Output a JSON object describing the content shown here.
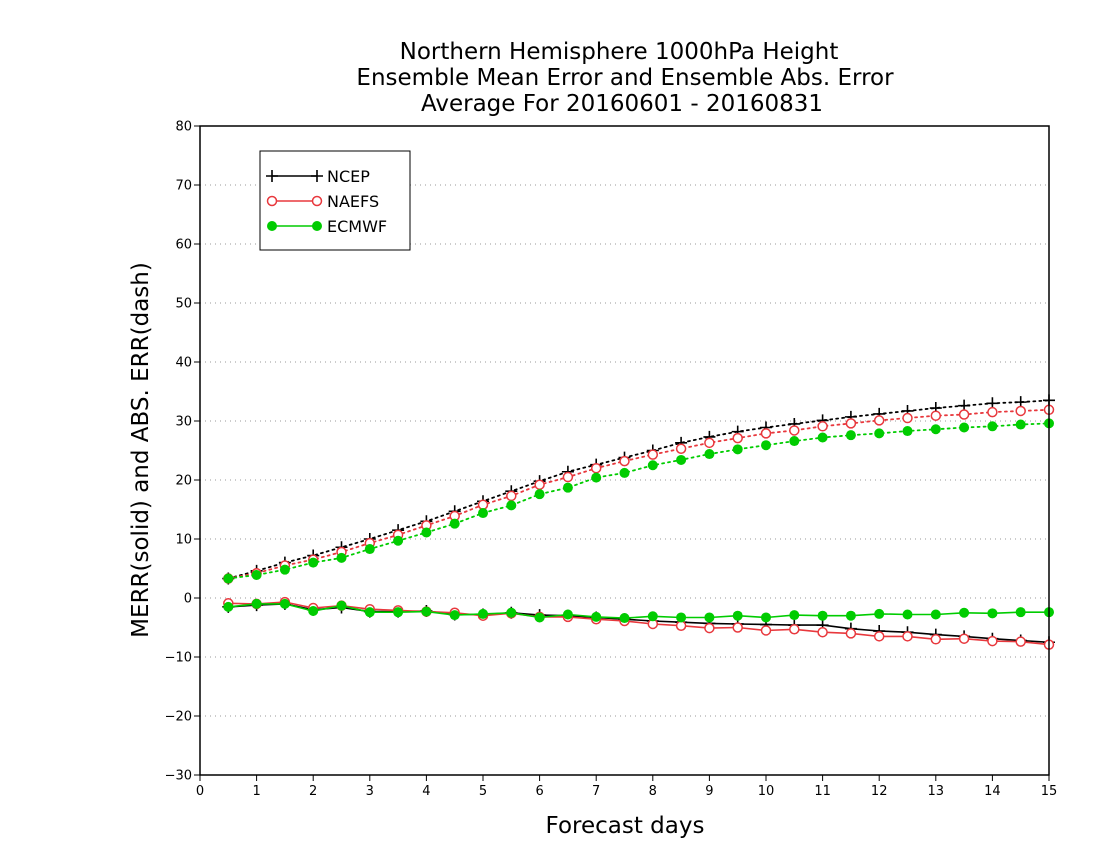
{
  "chart_data": {
    "type": "line",
    "title": [
      "Northern Hemisphere 1000hPa Height",
      "Ensemble Mean Error and Ensemble Abs. Error",
      "Average For 20160601 - 20160831"
    ],
    "xlabel": "Forecast days",
    "ylabel": "MERR(solid) and ABS. ERR(dash)",
    "xlim": [
      0,
      15
    ],
    "ylim": [
      -30,
      80
    ],
    "xticks": [
      "0",
      "1",
      "2",
      "3",
      "4",
      "5",
      "6",
      "7",
      "8",
      "9",
      "10",
      "11",
      "12",
      "13",
      "14",
      "15"
    ],
    "yticks": [
      "−30",
      "−20",
      "−10",
      "0",
      "10",
      "20",
      "30",
      "40",
      "50",
      "60",
      "70",
      "80"
    ],
    "grid": "horizontal dotted",
    "legend_placement": "top-left",
    "x": [
      0.5,
      1,
      1.5,
      2,
      2.5,
      3,
      3.5,
      4,
      4.5,
      5,
      5.5,
      6,
      6.5,
      7,
      7.5,
      8,
      8.5,
      9,
      9.5,
      10,
      10.5,
      11,
      11.5,
      12,
      12.5,
      13,
      13.5,
      14,
      14.5,
      15
    ],
    "series": [
      {
        "name": "NCEP",
        "color": "#000000",
        "marker": "plus",
        "merr": [
          -1.5,
          -1.2,
          -1.0,
          -2.0,
          -1.6,
          -2.3,
          -2.3,
          -2.2,
          -2.8,
          -2.8,
          -2.5,
          -2.9,
          -3.0,
          -3.3,
          -3.6,
          -3.9,
          -4.1,
          -4.3,
          -4.4,
          -4.5,
          -4.6,
          -4.6,
          -5.2,
          -5.6,
          -5.8,
          -6.2,
          -6.5,
          -6.9,
          -7.2,
          -7.5
        ],
        "abs_err": [
          3.3,
          4.6,
          6.0,
          7.2,
          8.6,
          10.0,
          11.5,
          13.0,
          14.7,
          16.4,
          18.1,
          19.8,
          21.4,
          22.6,
          23.8,
          25.0,
          26.3,
          27.3,
          28.2,
          28.9,
          29.5,
          30.1,
          30.7,
          31.2,
          31.7,
          32.2,
          32.6,
          33.0,
          33.2,
          33.5
        ]
      },
      {
        "name": "NAEFS",
        "color": "#e8383d",
        "marker": "open-circle",
        "merr": [
          -0.9,
          -1.0,
          -0.7,
          -1.7,
          -1.3,
          -1.9,
          -2.1,
          -2.3,
          -2.5,
          -3.0,
          -2.6,
          -3.2,
          -3.2,
          -3.6,
          -3.9,
          -4.4,
          -4.7,
          -5.1,
          -5.0,
          -5.5,
          -5.3,
          -5.8,
          -6.0,
          -6.5,
          -6.5,
          -7.0,
          -6.9,
          -7.3,
          -7.4,
          -7.9
        ],
        "abs_err": [
          3.3,
          4.2,
          5.5,
          6.5,
          7.8,
          9.3,
          10.7,
          12.3,
          13.9,
          15.8,
          17.3,
          19.2,
          20.5,
          22.0,
          23.2,
          24.3,
          25.3,
          26.3,
          27.1,
          27.9,
          28.4,
          29.1,
          29.6,
          30.1,
          30.5,
          30.9,
          31.1,
          31.5,
          31.7,
          31.9
        ]
      },
      {
        "name": "ECMWF",
        "color": "#00cc00",
        "marker": "filled-circle",
        "merr": [
          -1.5,
          -1.0,
          -1.0,
          -2.2,
          -1.3,
          -2.4,
          -2.4,
          -2.3,
          -2.9,
          -2.7,
          -2.5,
          -3.3,
          -2.8,
          -3.2,
          -3.4,
          -3.1,
          -3.3,
          -3.3,
          -3.0,
          -3.3,
          -2.9,
          -3.0,
          -3.0,
          -2.7,
          -2.8,
          -2.8,
          -2.5,
          -2.6,
          -2.4,
          -2.4
        ],
        "abs_err": [
          3.3,
          3.9,
          4.8,
          6.0,
          6.8,
          8.3,
          9.7,
          11.1,
          12.6,
          14.4,
          15.7,
          17.6,
          18.7,
          20.4,
          21.2,
          22.5,
          23.4,
          24.4,
          25.2,
          25.9,
          26.6,
          27.2,
          27.6,
          27.9,
          28.3,
          28.6,
          28.9,
          29.1,
          29.4,
          29.6
        ]
      }
    ]
  }
}
